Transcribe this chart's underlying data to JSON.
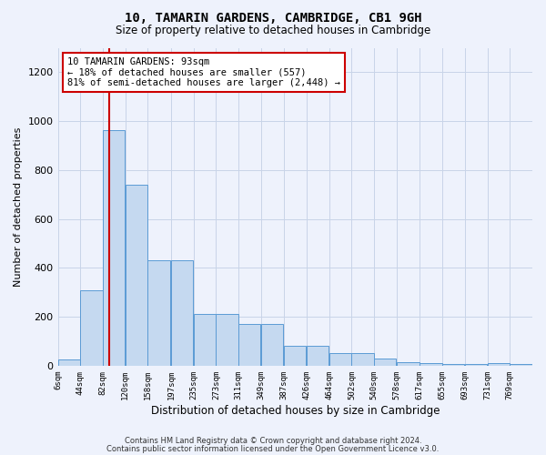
{
  "title": "10, TAMARIN GARDENS, CAMBRIDGE, CB1 9GH",
  "subtitle": "Size of property relative to detached houses in Cambridge",
  "xlabel": "Distribution of detached houses by size in Cambridge",
  "ylabel": "Number of detached properties",
  "bin_labels": [
    "6sqm",
    "44sqm",
    "82sqm",
    "120sqm",
    "158sqm",
    "197sqm",
    "235sqm",
    "273sqm",
    "311sqm",
    "349sqm",
    "387sqm",
    "426sqm",
    "464sqm",
    "502sqm",
    "540sqm",
    "578sqm",
    "617sqm",
    "655sqm",
    "693sqm",
    "731sqm",
    "769sqm"
  ],
  "bin_starts": [
    6,
    44,
    82,
    120,
    158,
    197,
    235,
    273,
    311,
    349,
    387,
    426,
    464,
    502,
    540,
    578,
    617,
    655,
    693,
    731,
    769
  ],
  "bar_heights": [
    25,
    310,
    965,
    740,
    430,
    430,
    210,
    210,
    170,
    170,
    80,
    80,
    50,
    50,
    30,
    15,
    10,
    5,
    5,
    10,
    5
  ],
  "bar_color": "#c5d9f0",
  "bar_edgecolor": "#5b9bd5",
  "property_size": 93,
  "vline_color": "#cc0000",
  "annotation_line1": "10 TAMARIN GARDENS: 93sqm",
  "annotation_line2": "← 18% of detached houses are smaller (557)",
  "annotation_line3": "81% of semi-detached houses are larger (2,448) →",
  "ylim": [
    0,
    1300
  ],
  "yticks": [
    0,
    200,
    400,
    600,
    800,
    1000,
    1200
  ],
  "footer1": "Contains HM Land Registry data © Crown copyright and database right 2024.",
  "footer2": "Contains public sector information licensed under the Open Government Licence v3.0.",
  "bg_color": "#eef2fc",
  "grid_color": "#c8d4e8"
}
